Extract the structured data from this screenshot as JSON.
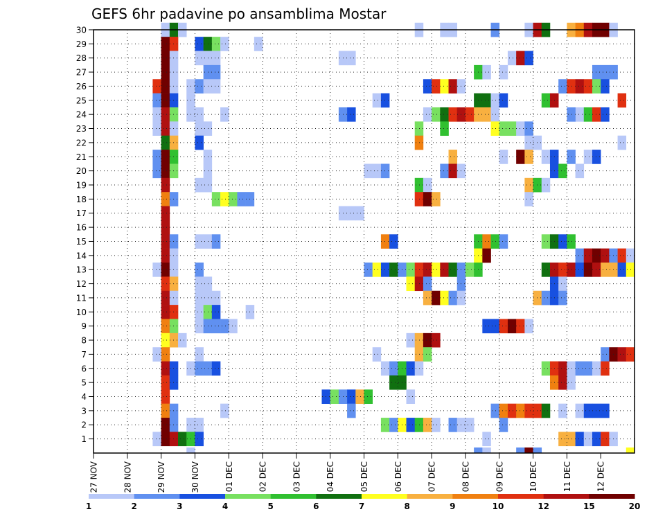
{
  "chart_data": {
    "type": "heatmap",
    "title": "GEFS 6hr padavine po ansamblima Mostar",
    "y_categories": [
      1,
      2,
      3,
      4,
      5,
      6,
      7,
      8,
      9,
      10,
      11,
      12,
      13,
      14,
      15,
      16,
      17,
      18,
      19,
      20,
      21,
      22,
      23,
      24,
      25,
      26,
      27,
      28,
      29,
      30
    ],
    "x_tick_labels": [
      "27 NOV",
      "28 NOV",
      "29 NOV",
      "30 NOV",
      "01 DEC",
      "02 DEC",
      "03 DEC",
      "04 DEC",
      "05 DEC",
      "06 DEC",
      "07 DEC",
      "08 DEC",
      "09 DEC",
      "10 DEC",
      "11 DEC",
      "12 DEC"
    ],
    "grid": true,
    "colorbar": {
      "placement": "bottom",
      "tick_labels": [
        "1",
        "2",
        "3",
        "4",
        "5",
        "6",
        "7",
        "8",
        "9",
        "10",
        "12",
        "15",
        "20"
      ],
      "colors": [
        "#b8c8f8",
        "#6090f0",
        "#1850e0",
        "#78e060",
        "#30c030",
        "#107010",
        "#ffff20",
        "#f8b040",
        "#f08010",
        "#e03010",
        "#b01010",
        "#700000"
      ]
    },
    "cells": [
      [
        30,
        8,
        0
      ],
      [
        30,
        9,
        5
      ],
      [
        30,
        10,
        0
      ],
      [
        30,
        38,
        0
      ],
      [
        30,
        41,
        0
      ],
      [
        30,
        42,
        0
      ],
      [
        30,
        47,
        1
      ],
      [
        30,
        51,
        0
      ],
      [
        30,
        52,
        10
      ],
      [
        30,
        53,
        5
      ],
      [
        30,
        56,
        7
      ],
      [
        30,
        57,
        8
      ],
      [
        30,
        58,
        10
      ],
      [
        30,
        59,
        11
      ],
      [
        30,
        60,
        11
      ],
      [
        30,
        61,
        0
      ],
      [
        29,
        8,
        11
      ],
      [
        29,
        9,
        9
      ],
      [
        29,
        12,
        2
      ],
      [
        29,
        13,
        5
      ],
      [
        29,
        14,
        3
      ],
      [
        29,
        15,
        0
      ],
      [
        29,
        19,
        0
      ],
      [
        28,
        8,
        11
      ],
      [
        28,
        9,
        0
      ],
      [
        28,
        12,
        0
      ],
      [
        28,
        13,
        0
      ],
      [
        28,
        14,
        0
      ],
      [
        28,
        29,
        0
      ],
      [
        28,
        30,
        0
      ],
      [
        28,
        49,
        0
      ],
      [
        28,
        50,
        10
      ],
      [
        28,
        51,
        2
      ],
      [
        27,
        8,
        11
      ],
      [
        27,
        9,
        0
      ],
      [
        27,
        13,
        1
      ],
      [
        27,
        14,
        1
      ],
      [
        27,
        45,
        4
      ],
      [
        27,
        46,
        0
      ],
      [
        27,
        48,
        0
      ],
      [
        27,
        59,
        1
      ],
      [
        27,
        60,
        1
      ],
      [
        27,
        61,
        1
      ],
      [
        26,
        7,
        9
      ],
      [
        26,
        8,
        11
      ],
      [
        26,
        9,
        0
      ],
      [
        26,
        11,
        0
      ],
      [
        26,
        12,
        1
      ],
      [
        26,
        13,
        0
      ],
      [
        26,
        14,
        0
      ],
      [
        26,
        39,
        2
      ],
      [
        26,
        40,
        9
      ],
      [
        26,
        41,
        6
      ],
      [
        26,
        42,
        10
      ],
      [
        26,
        43,
        0
      ],
      [
        26,
        55,
        1
      ],
      [
        26,
        56,
        9
      ],
      [
        26,
        57,
        10
      ],
      [
        26,
        58,
        9
      ],
      [
        26,
        59,
        3
      ],
      [
        26,
        60,
        2
      ],
      [
        25,
        7,
        1
      ],
      [
        25,
        8,
        11
      ],
      [
        25,
        9,
        2
      ],
      [
        25,
        11,
        0
      ],
      [
        25,
        33,
        0
      ],
      [
        25,
        34,
        2
      ],
      [
        25,
        45,
        5
      ],
      [
        25,
        46,
        5
      ],
      [
        25,
        47,
        0
      ],
      [
        25,
        48,
        2
      ],
      [
        25,
        53,
        4
      ],
      [
        25,
        54,
        10
      ],
      [
        25,
        62,
        9
      ],
      [
        24,
        7,
        0
      ],
      [
        24,
        8,
        10
      ],
      [
        24,
        9,
        3
      ],
      [
        24,
        11,
        0
      ],
      [
        24,
        12,
        0
      ],
      [
        24,
        15,
        0
      ],
      [
        24,
        29,
        1
      ],
      [
        24,
        30,
        2
      ],
      [
        24,
        39,
        0
      ],
      [
        24,
        40,
        3
      ],
      [
        24,
        41,
        5
      ],
      [
        24,
        42,
        9
      ],
      [
        24,
        43,
        10
      ],
      [
        24,
        44,
        9
      ],
      [
        24,
        45,
        7
      ],
      [
        24,
        46,
        7
      ],
      [
        24,
        47,
        0
      ],
      [
        24,
        57,
        0
      ],
      [
        24,
        56,
        1
      ],
      [
        24,
        58,
        4
      ],
      [
        24,
        59,
        9
      ],
      [
        24,
        60,
        2
      ],
      [
        23,
        7,
        0
      ],
      [
        23,
        8,
        10
      ],
      [
        23,
        9,
        0
      ],
      [
        23,
        12,
        0
      ],
      [
        23,
        13,
        0
      ],
      [
        23,
        38,
        3
      ],
      [
        23,
        41,
        4
      ],
      [
        23,
        47,
        6
      ],
      [
        23,
        48,
        3
      ],
      [
        23,
        49,
        3
      ],
      [
        23,
        50,
        0
      ],
      [
        23,
        51,
        1
      ],
      [
        22,
        8,
        5
      ],
      [
        22,
        9,
        7
      ],
      [
        22,
        12,
        2
      ],
      [
        22,
        38,
        8
      ],
      [
        22,
        51,
        0
      ],
      [
        22,
        52,
        0
      ],
      [
        22,
        62,
        0
      ],
      [
        21,
        7,
        1
      ],
      [
        21,
        8,
        11
      ],
      [
        21,
        9,
        4
      ],
      [
        21,
        13,
        0
      ],
      [
        21,
        42,
        7
      ],
      [
        21,
        48,
        0
      ],
      [
        21,
        50,
        11
      ],
      [
        21,
        51,
        7
      ],
      [
        21,
        53,
        0
      ],
      [
        21,
        54,
        2
      ],
      [
        21,
        56,
        1
      ],
      [
        21,
        58,
        0
      ],
      [
        21,
        59,
        2
      ],
      [
        20,
        7,
        1
      ],
      [
        20,
        8,
        11
      ],
      [
        20,
        9,
        3
      ],
      [
        20,
        13,
        0
      ],
      [
        20,
        32,
        0
      ],
      [
        20,
        33,
        0
      ],
      [
        20,
        34,
        1
      ],
      [
        20,
        41,
        1
      ],
      [
        20,
        42,
        10
      ],
      [
        20,
        43,
        0
      ],
      [
        20,
        54,
        2
      ],
      [
        20,
        55,
        4
      ],
      [
        20,
        57,
        0
      ],
      [
        19,
        8,
        10
      ],
      [
        19,
        12,
        0
      ],
      [
        19,
        13,
        0
      ],
      [
        19,
        38,
        4
      ],
      [
        19,
        39,
        0
      ],
      [
        19,
        51,
        7
      ],
      [
        19,
        52,
        4
      ],
      [
        19,
        53,
        0
      ],
      [
        18,
        8,
        8
      ],
      [
        18,
        9,
        1
      ],
      [
        18,
        14,
        3
      ],
      [
        18,
        15,
        6
      ],
      [
        18,
        16,
        3
      ],
      [
        18,
        17,
        1
      ],
      [
        18,
        18,
        1
      ],
      [
        18,
        38,
        9
      ],
      [
        18,
        39,
        11
      ],
      [
        18,
        40,
        7
      ],
      [
        18,
        51,
        0
      ],
      [
        17,
        8,
        10
      ],
      [
        17,
        29,
        0
      ],
      [
        17,
        30,
        0
      ],
      [
        17,
        31,
        0
      ],
      [
        16,
        8,
        10
      ],
      [
        15,
        8,
        10
      ],
      [
        15,
        9,
        1
      ],
      [
        15,
        12,
        0
      ],
      [
        15,
        13,
        0
      ],
      [
        15,
        14,
        1
      ],
      [
        15,
        34,
        8
      ],
      [
        15,
        35,
        2
      ],
      [
        15,
        45,
        4
      ],
      [
        15,
        46,
        8
      ],
      [
        15,
        47,
        4
      ],
      [
        15,
        48,
        1
      ],
      [
        15,
        53,
        3
      ],
      [
        15,
        54,
        5
      ],
      [
        15,
        55,
        2
      ],
      [
        15,
        56,
        4
      ],
      [
        14,
        8,
        10
      ],
      [
        14,
        9,
        0
      ],
      [
        14,
        45,
        6
      ],
      [
        14,
        46,
        11
      ],
      [
        14,
        57,
        1
      ],
      [
        14,
        58,
        10
      ],
      [
        14,
        59,
        11
      ],
      [
        14,
        60,
        10
      ],
      [
        14,
        61,
        1
      ],
      [
        14,
        62,
        9
      ],
      [
        14,
        63,
        0
      ],
      [
        13,
        7,
        0
      ],
      [
        13,
        8,
        11
      ],
      [
        13,
        9,
        0
      ],
      [
        13,
        12,
        1
      ],
      [
        13,
        32,
        1
      ],
      [
        13,
        33,
        6
      ],
      [
        13,
        34,
        2
      ],
      [
        13,
        35,
        5
      ],
      [
        13,
        36,
        1
      ],
      [
        13,
        37,
        3
      ],
      [
        13,
        38,
        9
      ],
      [
        13,
        39,
        10
      ],
      [
        13,
        40,
        6
      ],
      [
        13,
        41,
        10
      ],
      [
        13,
        42,
        5
      ],
      [
        13,
        43,
        1
      ],
      [
        13,
        44,
        3
      ],
      [
        13,
        45,
        4
      ],
      [
        13,
        53,
        5
      ],
      [
        13,
        54,
        10
      ],
      [
        13,
        55,
        9
      ],
      [
        13,
        56,
        10
      ],
      [
        13,
        57,
        2
      ],
      [
        13,
        58,
        11
      ],
      [
        13,
        59,
        10
      ],
      [
        13,
        60,
        7
      ],
      [
        13,
        61,
        7
      ],
      [
        13,
        62,
        2
      ],
      [
        13,
        63,
        6
      ],
      [
        12,
        8,
        9
      ],
      [
        12,
        9,
        7
      ],
      [
        12,
        12,
        0
      ],
      [
        12,
        13,
        0
      ],
      [
        12,
        37,
        6
      ],
      [
        12,
        38,
        10
      ],
      [
        12,
        39,
        1
      ],
      [
        12,
        43,
        1
      ],
      [
        12,
        54,
        2
      ],
      [
        12,
        55,
        0
      ],
      [
        11,
        8,
        10
      ],
      [
        11,
        9,
        0
      ],
      [
        11,
        12,
        0
      ],
      [
        11,
        13,
        0
      ],
      [
        11,
        14,
        0
      ],
      [
        11,
        39,
        7
      ],
      [
        11,
        40,
        11
      ],
      [
        11,
        41,
        6
      ],
      [
        11,
        42,
        1
      ],
      [
        11,
        43,
        0
      ],
      [
        11,
        52,
        7
      ],
      [
        11,
        53,
        1
      ],
      [
        11,
        54,
        2
      ],
      [
        11,
        55,
        1
      ],
      [
        10,
        8,
        10
      ],
      [
        10,
        9,
        9
      ],
      [
        10,
        12,
        0
      ],
      [
        10,
        13,
        3
      ],
      [
        10,
        14,
        2
      ],
      [
        10,
        18,
        0
      ],
      [
        9,
        8,
        8
      ],
      [
        9,
        9,
        3
      ],
      [
        9,
        12,
        0
      ],
      [
        9,
        13,
        1
      ],
      [
        9,
        14,
        1
      ],
      [
        9,
        15,
        1
      ],
      [
        9,
        16,
        0
      ],
      [
        9,
        46,
        2
      ],
      [
        9,
        47,
        2
      ],
      [
        9,
        48,
        9
      ],
      [
        9,
        49,
        11
      ],
      [
        9,
        50,
        9
      ],
      [
        9,
        51,
        0
      ],
      [
        8,
        8,
        6
      ],
      [
        8,
        9,
        7
      ],
      [
        8,
        10,
        0
      ],
      [
        8,
        37,
        0
      ],
      [
        8,
        38,
        7
      ],
      [
        8,
        39,
        11
      ],
      [
        8,
        40,
        10
      ],
      [
        7,
        8,
        8
      ],
      [
        7,
        7,
        0
      ],
      [
        7,
        12,
        0
      ],
      [
        7,
        33,
        0
      ],
      [
        7,
        38,
        7
      ],
      [
        7,
        39,
        3
      ],
      [
        7,
        60,
        1
      ],
      [
        7,
        61,
        11
      ],
      [
        7,
        62,
        10
      ],
      [
        7,
        63,
        9
      ],
      [
        6,
        8,
        10
      ],
      [
        6,
        9,
        2
      ],
      [
        6,
        11,
        0
      ],
      [
        6,
        12,
        1
      ],
      [
        6,
        13,
        1
      ],
      [
        6,
        14,
        2
      ],
      [
        6,
        34,
        0
      ],
      [
        6,
        35,
        1
      ],
      [
        6,
        36,
        4
      ],
      [
        6,
        37,
        2
      ],
      [
        6,
        38,
        0
      ],
      [
        6,
        53,
        3
      ],
      [
        6,
        54,
        9
      ],
      [
        6,
        55,
        10
      ],
      [
        6,
        56,
        0
      ],
      [
        6,
        57,
        1
      ],
      [
        6,
        58,
        1
      ],
      [
        6,
        59,
        0
      ],
      [
        6,
        60,
        9
      ],
      [
        5,
        8,
        9
      ],
      [
        5,
        9,
        2
      ],
      [
        5,
        35,
        5
      ],
      [
        5,
        36,
        5
      ],
      [
        5,
        54,
        8
      ],
      [
        5,
        55,
        10
      ],
      [
        5,
        56,
        0
      ],
      [
        4,
        8,
        9
      ],
      [
        4,
        27,
        2
      ],
      [
        4,
        28,
        3
      ],
      [
        4,
        29,
        1
      ],
      [
        4,
        30,
        2
      ],
      [
        4,
        31,
        7
      ],
      [
        4,
        32,
        4
      ],
      [
        4,
        37,
        0
      ],
      [
        3,
        8,
        8
      ],
      [
        3,
        9,
        1
      ],
      [
        3,
        15,
        0
      ],
      [
        3,
        30,
        1
      ],
      [
        3,
        47,
        1
      ],
      [
        3,
        48,
        8
      ],
      [
        3,
        49,
        9
      ],
      [
        3,
        50,
        8
      ],
      [
        3,
        51,
        9
      ],
      [
        3,
        52,
        9
      ],
      [
        3,
        53,
        5
      ],
      [
        3,
        55,
        0
      ],
      [
        3,
        57,
        0
      ],
      [
        3,
        58,
        2
      ],
      [
        3,
        59,
        2
      ],
      [
        3,
        60,
        2
      ],
      [
        2,
        8,
        11
      ],
      [
        2,
        9,
        1
      ],
      [
        2,
        11,
        0
      ],
      [
        2,
        12,
        0
      ],
      [
        2,
        34,
        3
      ],
      [
        2,
        35,
        1
      ],
      [
        2,
        36,
        6
      ],
      [
        2,
        37,
        2
      ],
      [
        2,
        38,
        4
      ],
      [
        2,
        39,
        7
      ],
      [
        2,
        40,
        0
      ],
      [
        2,
        42,
        1
      ],
      [
        2,
        43,
        0
      ],
      [
        2,
        44,
        0
      ],
      [
        2,
        48,
        1
      ],
      [
        1,
        7,
        0
      ],
      [
        1,
        8,
        11
      ],
      [
        1,
        9,
        10
      ],
      [
        1,
        10,
        5
      ],
      [
        1,
        11,
        4
      ],
      [
        1,
        12,
        2
      ],
      [
        1,
        46,
        0
      ],
      [
        1,
        55,
        7
      ],
      [
        1,
        56,
        7
      ],
      [
        1,
        57,
        2
      ],
      [
        1,
        58,
        0
      ],
      [
        1,
        59,
        2
      ],
      [
        1,
        60,
        9
      ],
      [
        1,
        61,
        0
      ],
      [
        0,
        11,
        0
      ],
      [
        0,
        45,
        1
      ],
      [
        0,
        46,
        0
      ],
      [
        0,
        50,
        1
      ],
      [
        0,
        51,
        11
      ],
      [
        0,
        52,
        1
      ],
      [
        0,
        63,
        6
      ]
    ]
  }
}
